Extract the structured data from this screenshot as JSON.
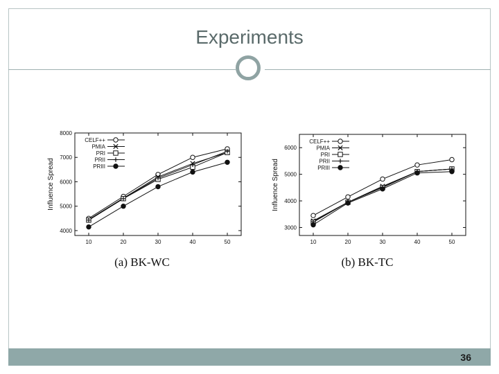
{
  "slide": {
    "title": "Experiments",
    "page_number": "36"
  },
  "chart_data": [
    {
      "type": "line",
      "caption": "(a)  BK-WC",
      "ylabel": "Influence Spread",
      "xlabel": "",
      "x": [
        10,
        20,
        30,
        40,
        50
      ],
      "xticks": [
        "10",
        "20",
        "30",
        "40",
        "50"
      ],
      "yticks": [
        "4000",
        "5000",
        "6000",
        "7000",
        "8000"
      ],
      "ylim": [
        3800,
        8000
      ],
      "series": [
        {
          "name": "CELF++",
          "marker": "circle-open",
          "values": [
            4500,
            5400,
            6300,
            7000,
            7350
          ]
        },
        {
          "name": "PMIA",
          "marker": "x",
          "values": [
            4450,
            5330,
            6200,
            6750,
            7200
          ]
        },
        {
          "name": "PRI",
          "marker": "square-open",
          "values": [
            4430,
            5310,
            6100,
            6600,
            7200
          ]
        },
        {
          "name": "PRII",
          "marker": "plus",
          "values": [
            4430,
            5310,
            6150,
            6700,
            7250
          ]
        },
        {
          "name": "PRIII",
          "marker": "circle-filled",
          "values": [
            4150,
            5000,
            5800,
            6400,
            6800
          ]
        }
      ]
    },
    {
      "type": "line",
      "caption": "(b)  BK-TC",
      "ylabel": "Influence Spread",
      "xlabel": "",
      "x": [
        10,
        20,
        30,
        40,
        50
      ],
      "xticks": [
        "10",
        "20",
        "30",
        "40",
        "50"
      ],
      "yticks": [
        "3000",
        "4000",
        "5000",
        "6000"
      ],
      "ylim": [
        2700,
        6500
      ],
      "series": [
        {
          "name": "CELF++",
          "marker": "circle-open",
          "values": [
            3450,
            4150,
            4820,
            5350,
            5550
          ]
        },
        {
          "name": "PMIA",
          "marker": "x",
          "values": [
            3250,
            3950,
            4550,
            5100,
            5200
          ]
        },
        {
          "name": "PRI",
          "marker": "square-open",
          "values": [
            3200,
            3950,
            4500,
            5100,
            5200
          ]
        },
        {
          "name": "PRII",
          "marker": "plus",
          "values": [
            3220,
            3950,
            4520,
            5100,
            5200
          ]
        },
        {
          "name": "PRIII",
          "marker": "circle-filled",
          "values": [
            3100,
            3920,
            4450,
            5050,
            5100
          ]
        }
      ]
    }
  ]
}
